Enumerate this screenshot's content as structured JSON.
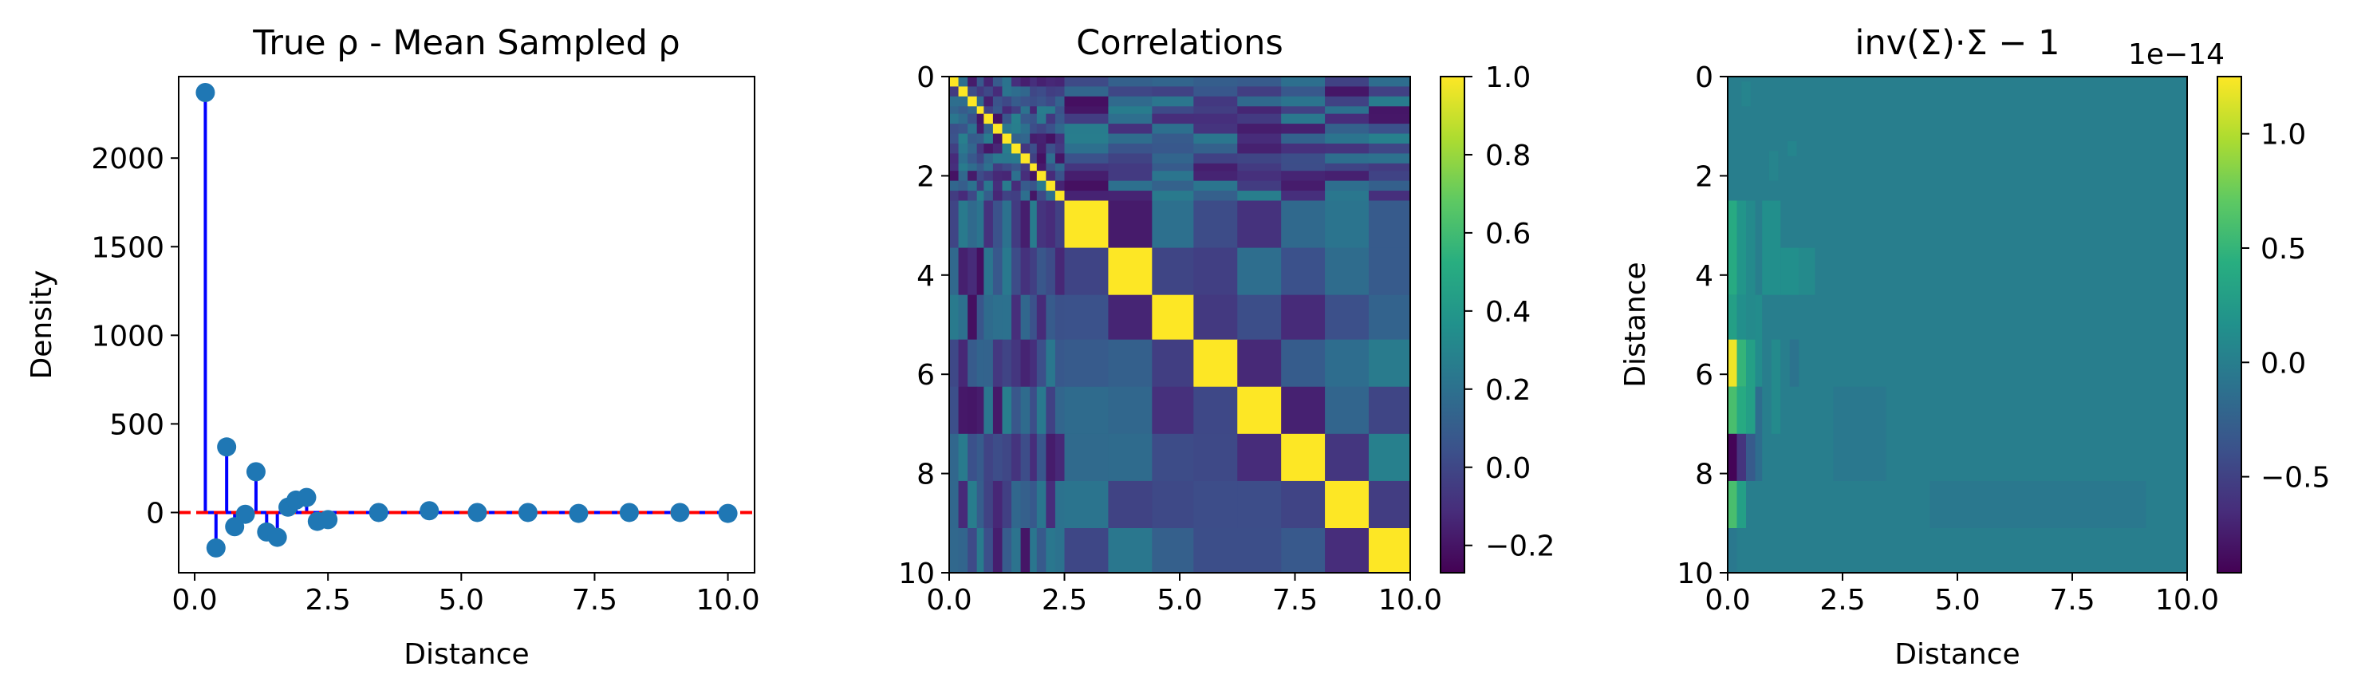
{
  "chart_data": [
    {
      "type": "stem",
      "title": "True ρ - Mean Sampled ρ",
      "xlabel": "Distance",
      "ylabel": "Density",
      "xlim": [
        -0.3,
        10.5
      ],
      "ylim": [
        -340,
        2460
      ],
      "xticks": [
        0.0,
        2.5,
        5.0,
        7.5,
        10.0
      ],
      "xtick_labels": [
        "0.0",
        "2.5",
        "5.0",
        "7.5",
        "10.0"
      ],
      "yticks": [
        0,
        500,
        1000,
        1500,
        2000
      ],
      "ytick_labels": [
        "0",
        "500",
        "1000",
        "1500",
        "2000"
      ],
      "baseline": 0,
      "baseline_color": "#ff0000",
      "stem_color": "#0000ff",
      "marker_color": "#1f77b4",
      "points": [
        {
          "x": 0.2,
          "y": 2370
        },
        {
          "x": 0.4,
          "y": -200
        },
        {
          "x": 0.6,
          "y": 370
        },
        {
          "x": 0.75,
          "y": -80
        },
        {
          "x": 0.95,
          "y": -10
        },
        {
          "x": 1.15,
          "y": 230
        },
        {
          "x": 1.35,
          "y": -110
        },
        {
          "x": 1.55,
          "y": -140
        },
        {
          "x": 1.75,
          "y": 30
        },
        {
          "x": 1.9,
          "y": 70
        },
        {
          "x": 2.1,
          "y": 85
        },
        {
          "x": 2.3,
          "y": -50
        },
        {
          "x": 2.5,
          "y": -40
        },
        {
          "x": 3.45,
          "y": 0
        },
        {
          "x": 4.4,
          "y": 10
        },
        {
          "x": 5.3,
          "y": 0
        },
        {
          "x": 6.25,
          "y": 0
        },
        {
          "x": 7.2,
          "y": -5
        },
        {
          "x": 8.15,
          "y": 0
        },
        {
          "x": 9.1,
          "y": 0
        },
        {
          "x": 10.0,
          "y": -5
        }
      ]
    },
    {
      "type": "heatmap",
      "title": "Correlations",
      "xlim": [
        0,
        10
      ],
      "ylim": [
        0,
        10
      ],
      "xticks": [
        0.0,
        2.5,
        5.0,
        7.5,
        10.0
      ],
      "xtick_labels": [
        "0.0",
        "2.5",
        "5.0",
        "7.5",
        "10.0"
      ],
      "yticks": [
        0,
        2,
        4,
        6,
        8,
        10
      ],
      "ytick_labels": [
        "0",
        "2",
        "4",
        "6",
        "8",
        "10"
      ],
      "colormap": "viridis",
      "vmin": -0.27,
      "vmax": 1.0,
      "colorbar_ticks": [
        1.0,
        0.8,
        0.6,
        0.4,
        0.2,
        0.0,
        -0.2
      ],
      "colorbar_labels": [
        "1.0",
        "0.8",
        "0.6",
        "0.4",
        "0.2",
        "0.0",
        "−0.2"
      ],
      "grid_edges": [
        0,
        0.2,
        0.4,
        0.6,
        0.75,
        0.95,
        1.15,
        1.35,
        1.55,
        1.75,
        1.9,
        2.1,
        2.3,
        2.5,
        3.45,
        4.4,
        5.3,
        6.25,
        7.2,
        8.15,
        9.1,
        10.0
      ]
    },
    {
      "type": "heatmap",
      "title": "inv(Σ)·Σ − 1",
      "xlabel": "Distance",
      "ylabel": "Distance",
      "xlim": [
        0,
        10
      ],
      "ylim": [
        0,
        10
      ],
      "xticks": [
        0.0,
        2.5,
        5.0,
        7.5,
        10.0
      ],
      "xtick_labels": [
        "0.0",
        "2.5",
        "5.0",
        "7.5",
        "10.0"
      ],
      "yticks": [
        0,
        2,
        4,
        6,
        8,
        10
      ],
      "ytick_labels": [
        "0",
        "2",
        "4",
        "6",
        "8",
        "10"
      ],
      "colormap": "viridis",
      "scale_label": "1e−14",
      "vmin": -0.92,
      "vmax": 1.25,
      "colorbar_ticks": [
        1.0,
        0.5,
        0.0,
        -0.5
      ],
      "colorbar_labels": [
        "1.0",
        "0.5",
        "0.0",
        "−0.5"
      ],
      "background_value": 0.0,
      "cells": [
        {
          "x0": 0.0,
          "x1": 0.2,
          "y0": 2.5,
          "y1": 4.4,
          "v": 0.4
        },
        {
          "x0": 0.0,
          "x1": 0.2,
          "y0": 4.4,
          "y1": 5.3,
          "v": 0.3
        },
        {
          "x0": 0.0,
          "x1": 0.2,
          "y0": 5.3,
          "y1": 6.25,
          "v": 1.2
        },
        {
          "x0": 0.0,
          "x1": 0.2,
          "y0": 6.25,
          "y1": 7.2,
          "v": 0.6
        },
        {
          "x0": 0.0,
          "x1": 0.2,
          "y0": 7.2,
          "y1": 8.15,
          "v": -0.9
        },
        {
          "x0": 0.0,
          "x1": 0.2,
          "y0": 8.15,
          "y1": 9.1,
          "v": 0.6
        },
        {
          "x0": 0.0,
          "x1": 0.2,
          "y0": 9.1,
          "y1": 10.0,
          "v": -0.05
        },
        {
          "x0": 0.2,
          "x1": 0.4,
          "y0": 2.5,
          "y1": 4.4,
          "v": 0.2
        },
        {
          "x0": 0.2,
          "x1": 0.4,
          "y0": 4.4,
          "y1": 5.3,
          "v": 0.15
        },
        {
          "x0": 0.2,
          "x1": 0.4,
          "y0": 5.3,
          "y1": 6.25,
          "v": 0.5
        },
        {
          "x0": 0.2,
          "x1": 0.4,
          "y0": 6.25,
          "y1": 7.2,
          "v": 0.4
        },
        {
          "x0": 0.2,
          "x1": 0.4,
          "y0": 7.2,
          "y1": 8.15,
          "v": -0.6
        },
        {
          "x0": 0.2,
          "x1": 0.4,
          "y0": 8.15,
          "y1": 9.1,
          "v": 0.3
        },
        {
          "x0": 0.4,
          "x1": 0.6,
          "y0": 2.5,
          "y1": 5.3,
          "v": 0.1
        },
        {
          "x0": 0.4,
          "x1": 0.6,
          "y0": 5.3,
          "y1": 7.2,
          "v": 0.3
        },
        {
          "x0": 0.4,
          "x1": 0.6,
          "y0": 7.2,
          "y1": 8.15,
          "v": -0.3
        },
        {
          "x0": 0.6,
          "x1": 0.75,
          "y0": 4.4,
          "y1": 6.25,
          "v": 0.12
        },
        {
          "x0": 0.6,
          "x1": 0.75,
          "y0": 6.25,
          "y1": 8.15,
          "v": -0.15
        },
        {
          "x0": 0.75,
          "x1": 1.15,
          "y0": 2.5,
          "y1": 4.4,
          "v": 0.15
        },
        {
          "x0": 0.95,
          "x1": 1.15,
          "y0": 5.3,
          "y1": 7.2,
          "v": 0.1
        },
        {
          "x0": 1.15,
          "x1": 1.55,
          "y0": 3.45,
          "y1": 4.4,
          "v": 0.15
        },
        {
          "x0": 1.35,
          "x1": 1.55,
          "y0": 5.3,
          "y1": 6.25,
          "v": -0.1
        },
        {
          "x0": 1.55,
          "x1": 1.9,
          "y0": 3.45,
          "y1": 4.4,
          "v": 0.1
        },
        {
          "x0": 0.3,
          "x1": 0.5,
          "y0": 0.1,
          "y1": 0.6,
          "v": 0.05
        },
        {
          "x0": 0.9,
          "x1": 1.1,
          "y0": 1.5,
          "y1": 2.1,
          "v": 0.05
        },
        {
          "x0": 1.3,
          "x1": 1.5,
          "y0": 1.3,
          "y1": 1.6,
          "v": 0.06
        },
        {
          "x0": 2.3,
          "x1": 3.45,
          "y0": 6.25,
          "y1": 8.15,
          "v": -0.05
        },
        {
          "x0": 4.4,
          "x1": 9.1,
          "y0": 8.15,
          "y1": 9.1,
          "v": -0.05
        }
      ]
    }
  ]
}
